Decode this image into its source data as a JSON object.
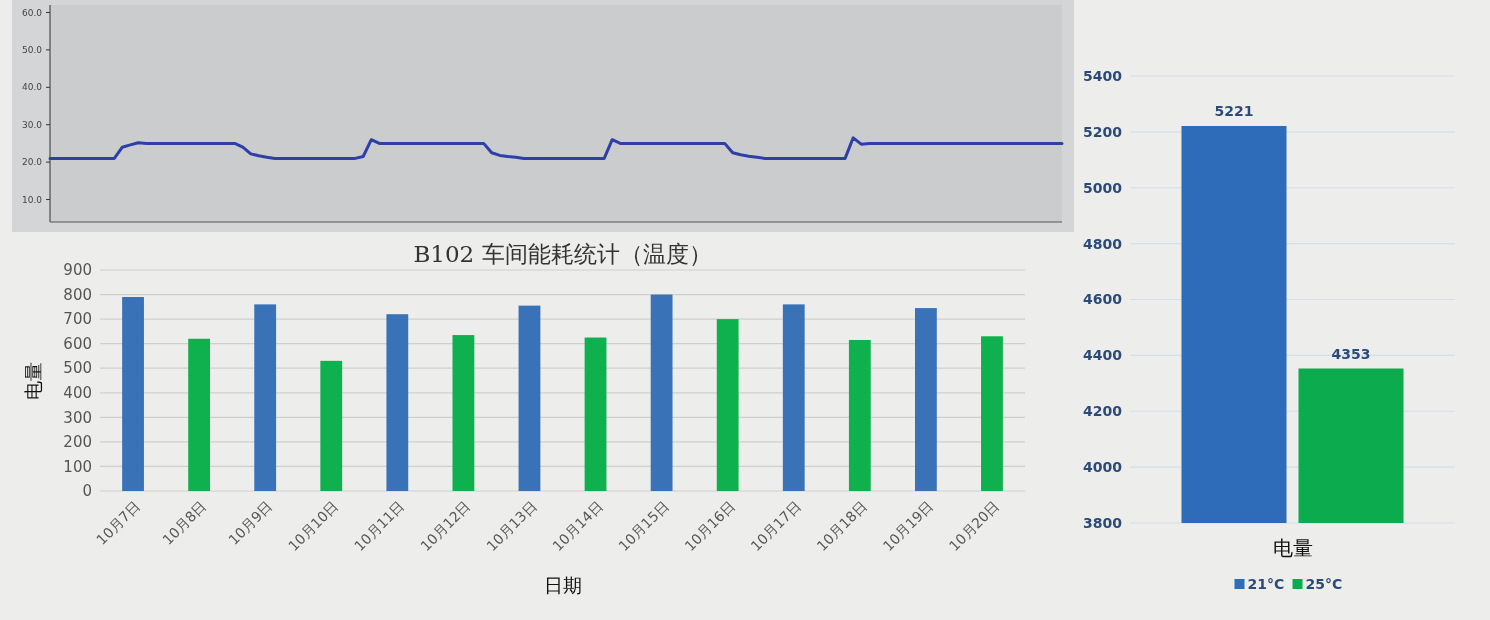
{
  "chart_data": [
    {
      "type": "line",
      "categories": [
        null,
        null,
        null,
        null,
        null,
        null,
        null,
        null,
        null,
        null,
        null,
        null,
        null,
        null,
        null,
        null,
        null,
        null,
        null,
        null,
        null,
        null,
        null,
        null,
        null,
        null,
        null,
        null,
        null,
        null,
        null,
        null,
        null,
        null,
        null,
        null,
        null,
        null,
        null,
        null,
        null,
        null,
        null,
        null,
        null,
        null,
        null,
        null,
        null,
        null,
        null,
        null,
        null,
        null,
        null,
        null,
        null,
        null,
        null,
        null,
        null,
        null,
        null,
        null,
        null,
        null,
        null,
        null,
        null,
        null,
        null,
        null,
        null,
        null,
        null,
        null,
        null,
        null,
        null,
        null,
        null,
        null,
        null,
        null,
        null,
        null,
        null,
        null,
        null,
        null,
        null,
        null,
        null,
        null,
        null,
        null,
        null,
        null,
        null,
        null,
        null,
        null,
        null,
        null,
        null,
        null,
        null,
        null,
        null,
        null,
        null,
        null,
        null,
        null,
        null,
        null,
        null,
        null,
        null,
        null,
        null,
        null,
        null,
        null,
        null,
        null,
        null
      ],
      "values": [
        21,
        21,
        21,
        21,
        21,
        21,
        21,
        21,
        21,
        24,
        24.6,
        25.2,
        25,
        25,
        25,
        25,
        25,
        25,
        25,
        25,
        25,
        25,
        25,
        25,
        24,
        22.2,
        21.7,
        21.3,
        21,
        21,
        21,
        21,
        21,
        21,
        21,
        21,
        21,
        21,
        21,
        21.5,
        26,
        25,
        25,
        25,
        25,
        25,
        25,
        25,
        25,
        25,
        25,
        25,
        25,
        25,
        25,
        22.5,
        21.8,
        21.5,
        21.3,
        21,
        21,
        21,
        21,
        21,
        21,
        21,
        21,
        21,
        21,
        21,
        26,
        25,
        25,
        25,
        25,
        25,
        25,
        25,
        25,
        25,
        25,
        25,
        25,
        25,
        25,
        22.5,
        22,
        21.6,
        21.3,
        21,
        21,
        21,
        21,
        21,
        21,
        21,
        21,
        21,
        21,
        21,
        26.5,
        24.8,
        25,
        25,
        25,
        25,
        25,
        25,
        25,
        25,
        25,
        25,
        25,
        25,
        25,
        25,
        25,
        25,
        25,
        25,
        25,
        25,
        25,
        25,
        25,
        25,
        25
      ],
      "color": "#2f3fa8",
      "ylim": [
        4,
        62
      ],
      "yticks": [
        {
          "value": 10,
          "label": "10.0"
        },
        {
          "value": 20,
          "label": "20.0"
        },
        {
          "value": 30,
          "label": "30.0"
        },
        {
          "value": 40,
          "label": "40.0"
        },
        {
          "value": 50,
          "label": "50.0"
        },
        {
          "value": 60,
          "label": "60.0"
        }
      ],
      "tick_labels": "y"
    },
    {
      "type": "bar",
      "title": "B102 车间能耗统计（温度）",
      "xlabel": "日期",
      "ylabel": "电量",
      "categories": [
        "10月7日",
        "10月8日",
        "10月9日",
        "10月10日",
        "10月11日",
        "10月12日",
        "10月13日",
        "10月14日",
        "10月15日",
        "10月16日",
        "10月17日",
        "10月18日",
        "10月19日",
        "10月20日"
      ],
      "values": [
        790,
        620,
        760,
        530,
        720,
        635,
        755,
        625,
        800,
        700,
        760,
        615,
        745,
        630
      ],
      "colors": [
        "#3a72b8",
        "#0fb04e",
        "#3a72b8",
        "#0fb04e",
        "#3a72b8",
        "#0fb04e",
        "#3a72b8",
        "#0fb04e",
        "#3a72b8",
        "#0fb04e",
        "#3a72b8",
        "#0fb04e",
        "#3a72b8",
        "#0fb04e"
      ],
      "ylim": [
        0,
        900
      ],
      "yticks": [
        0,
        100,
        200,
        300,
        400,
        500,
        600,
        700,
        800,
        900
      ],
      "grid": "y"
    },
    {
      "type": "bar",
      "categories": [
        "电量"
      ],
      "series": [
        {
          "name": "21°C",
          "color": "#2e6bb8",
          "values": [
            5221
          ]
        },
        {
          "name": "25°C",
          "color": "#0bab4e",
          "values": [
            4353
          ]
        }
      ],
      "ylim": [
        3800,
        5400
      ],
      "yticks": [
        3800,
        4000,
        4200,
        4400,
        4600,
        4800,
        5000,
        5200,
        5400
      ],
      "grid": "y",
      "data_labels": true,
      "legend": "bottom"
    }
  ]
}
